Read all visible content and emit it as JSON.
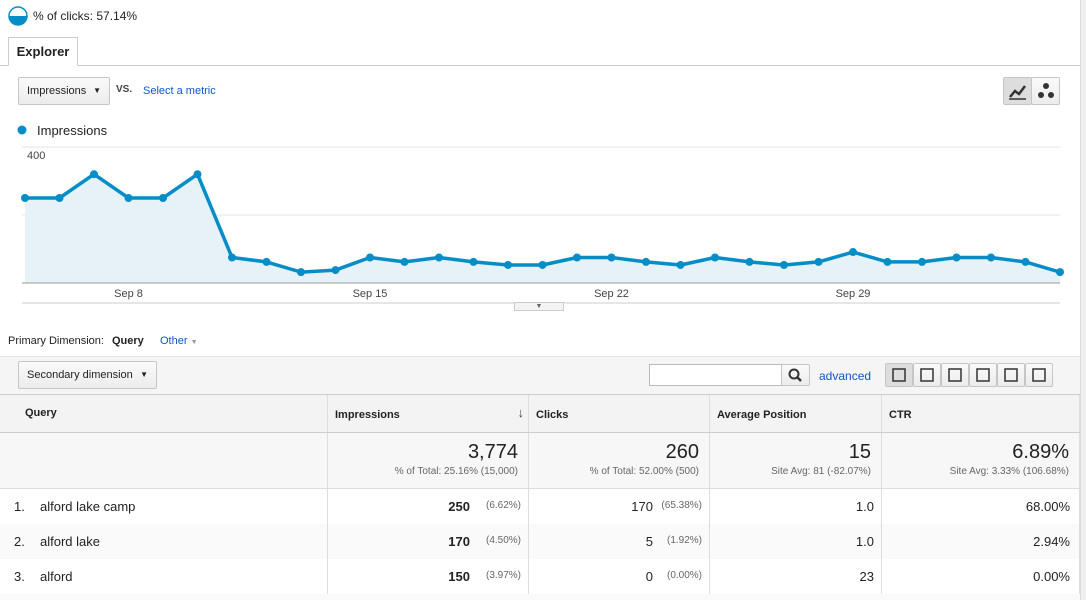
{
  "header": {
    "metric_label": "% of clicks: 57.14%"
  },
  "tab": "Explorer",
  "controls": {
    "metric": "Impressions",
    "vs": "VS.",
    "select": "Select a metric"
  },
  "chart_data": {
    "type": "line",
    "categories": [
      null,
      null,
      null,
      "Sep 8",
      null,
      null,
      null,
      null,
      null,
      null,
      "Sep 15",
      null,
      null,
      null,
      null,
      null,
      null,
      "Sep 22",
      null,
      null,
      null,
      null,
      null,
      null,
      "Sep 29",
      null,
      null,
      null,
      null,
      null,
      null
    ],
    "series": [
      {
        "name": "Impressions",
        "color": "#058dc7",
        "values": [
          250,
          250,
          320,
          250,
          250,
          320,
          75,
          62,
          32,
          38,
          75,
          62,
          75,
          62,
          53,
          53,
          75,
          75,
          62,
          53,
          75,
          62,
          53,
          62,
          91,
          62,
          62,
          75,
          75,
          62,
          32
        ]
      }
    ],
    "ylim": [
      0,
      400
    ],
    "yticks": [
      200,
      400
    ],
    "grid": true,
    "area_color": "#e6f2f8"
  },
  "dimension": {
    "label": "Primary Dimension:",
    "active": "Query",
    "other": "Other"
  },
  "secondary": "Secondary dimension",
  "advanced": "advanced",
  "table": {
    "columns": [
      "Query",
      "Impressions",
      "Clicks",
      "Average Position",
      "CTR"
    ],
    "totals": [
      {
        "value": "3,774",
        "sub": "% of Total: 25.16% (15,000)"
      },
      {
        "value": "260",
        "sub": "% of Total: 52.00% (500)"
      },
      {
        "value": "15",
        "sub": "Site Avg: 81 (-82.07%)"
      },
      {
        "value": "6.89%",
        "sub": "Site Avg: 3.33% (106.68%)"
      }
    ],
    "rows": [
      {
        "rank": "1.",
        "query": "alford lake camp",
        "impressions": "250",
        "impressions_pct": "(6.62%)",
        "clicks": "170",
        "clicks_pct": "(65.38%)",
        "position": "1.0",
        "ctr": "68.00%"
      },
      {
        "rank": "2.",
        "query": "alford lake",
        "impressions": "170",
        "impressions_pct": "(4.50%)",
        "clicks": "5",
        "clicks_pct": "(1.92%)",
        "position": "1.0",
        "ctr": "2.94%"
      },
      {
        "rank": "3.",
        "query": "alford",
        "impressions": "150",
        "impressions_pct": "(3.97%)",
        "clicks": "0",
        "clicks_pct": "(0.00%)",
        "position": "23",
        "ctr": "0.00%"
      }
    ]
  }
}
